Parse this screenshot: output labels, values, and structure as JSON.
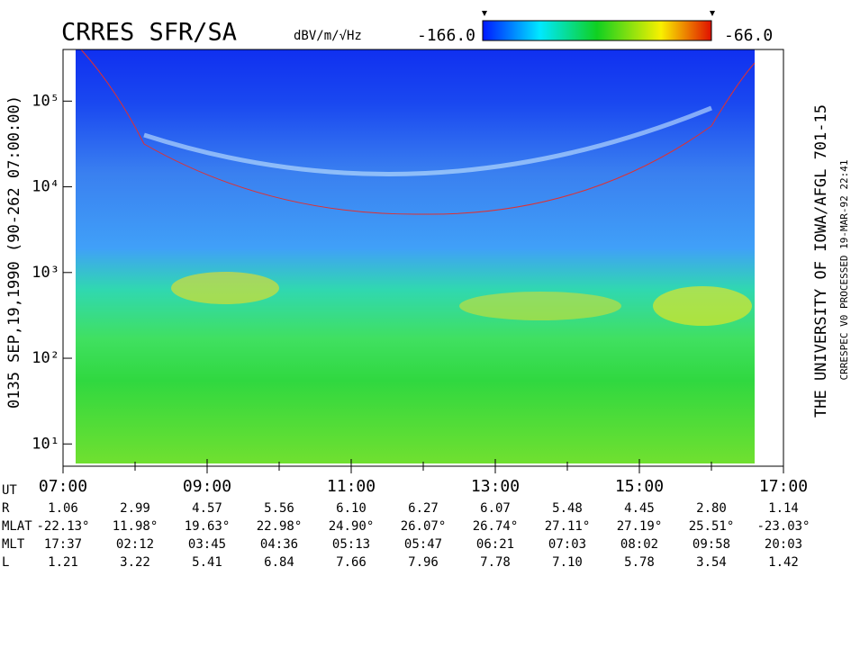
{
  "chart_data": {
    "type": "spectrogram",
    "title": "CRRES SFR/SA",
    "colorbar_label": "dBV/m/√Hz",
    "clim": [
      -166,
      -66
    ],
    "cticks": [
      {
        "value": -166,
        "label": "-166.0"
      },
      {
        "value": -66,
        "label": "-66.0"
      }
    ],
    "ylabel": "0135  SEP,19,1990  (90-262 07:00:00)",
    "log_y": true,
    "ylim": [
      5.5,
      400000
    ],
    "yticks": [
      {
        "value": 10,
        "label": "10¹"
      },
      {
        "value": 100,
        "label": "10²"
      },
      {
        "value": 1000,
        "label": "10³"
      },
      {
        "value": 10000,
        "label": "10⁴"
      },
      {
        "value": 100000,
        "label": "10⁵"
      }
    ],
    "xlabel": "UT",
    "xlim": [
      7,
      17
    ],
    "xticks": [
      {
        "value": 7,
        "label": "07:00"
      },
      {
        "value": 9,
        "label": "09:00"
      },
      {
        "value": 11,
        "label": "11:00"
      },
      {
        "value": 13,
        "label": "13:00"
      },
      {
        "value": 15,
        "label": "15:00"
      },
      {
        "value": 17,
        "label": "17:00"
      }
    ],
    "xminorticks": [
      8,
      10,
      12,
      14,
      16
    ],
    "right_title": "THE UNIVERSITY OF IOWA/AFGL  701-15",
    "right_note": "CRRESPEC V0   PROCESSED 19-MAR-92  22:41",
    "ephemeris": [
      {
        "name": "R",
        "values": [
          "1.06",
          "2.99",
          "4.57",
          "5.56",
          "6.10",
          "6.27",
          "6.07",
          "5.48",
          "4.45",
          "2.80",
          "1.14"
        ]
      },
      {
        "name": "MLAT",
        "values": [
          "-22.13°",
          "11.98°",
          "19.63°",
          "22.98°",
          "24.90°",
          "26.07°",
          "26.74°",
          "27.11°",
          "27.19°",
          "25.51°",
          "-23.03°"
        ]
      },
      {
        "name": "MLT",
        "values": [
          "17:37",
          "02:12",
          "03:45",
          "04:36",
          "05:13",
          "05:47",
          "06:21",
          "07:03",
          "08:02",
          "09:58",
          "20:03"
        ]
      },
      {
        "name": "L",
        "values": [
          "1.21",
          "3.22",
          "5.41",
          "6.84",
          "7.66",
          "7.96",
          "7.78",
          "7.10",
          "5.78",
          "3.54",
          "1.42"
        ]
      }
    ]
  }
}
